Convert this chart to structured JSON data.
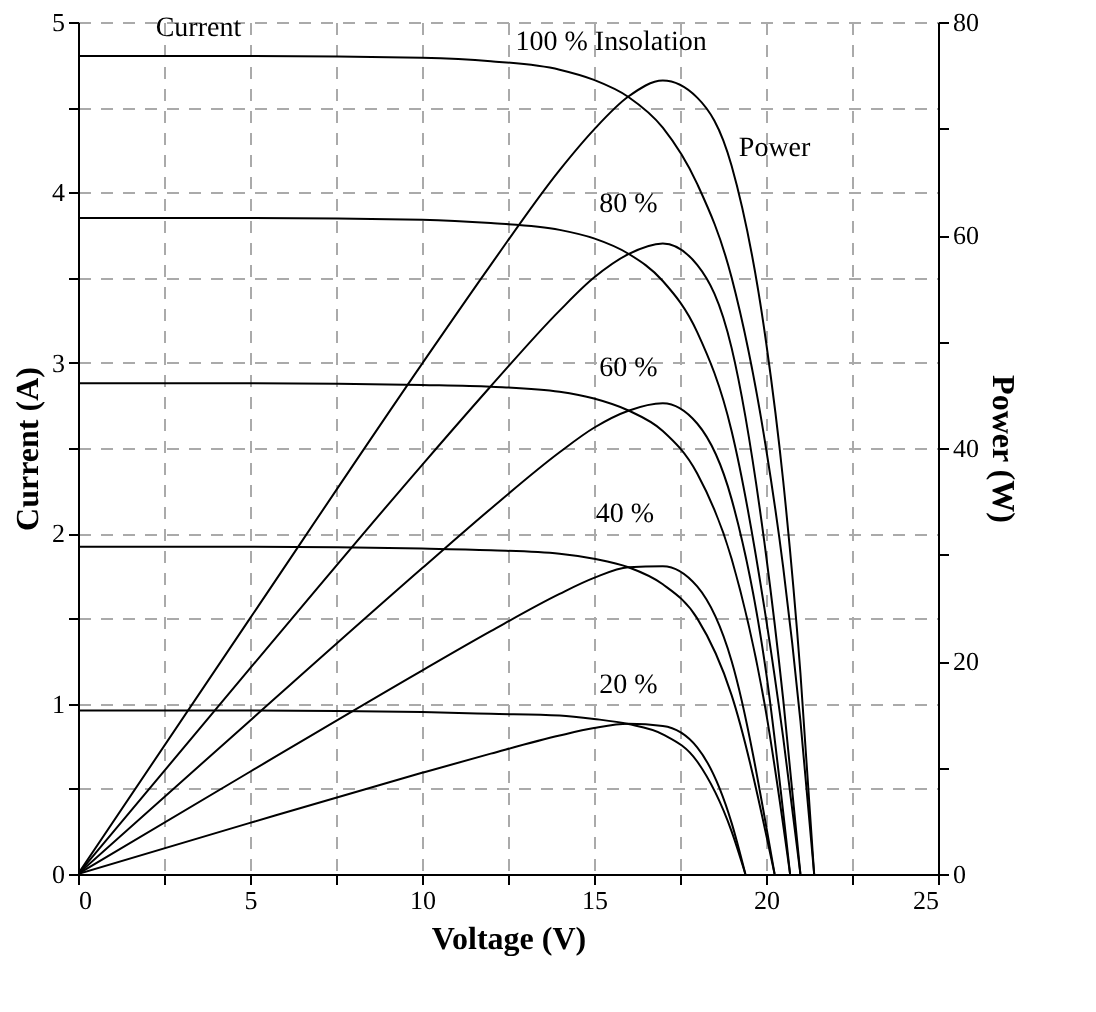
{
  "chart_data": {
    "type": "line",
    "xlabel": "Voltage (V)",
    "ylabel": "Current (A)",
    "y2label": "Power (W)",
    "xlim": [
      0,
      25
    ],
    "xticks": [
      0,
      {
        "value": 2.5,
        "label": null
      },
      5,
      {
        "value": 7.5,
        "label": null
      },
      10,
      {
        "value": 12.5,
        "label": null
      },
      15,
      {
        "value": 17.5,
        "label": null
      },
      20,
      {
        "value": 22.5,
        "label": null
      },
      25
    ],
    "ylim": [
      0,
      5
    ],
    "yticks": [
      0,
      {
        "value": 0.5,
        "label": null
      },
      1,
      {
        "value": 1.5,
        "label": null
      },
      2,
      {
        "value": 2.5,
        "label": null
      },
      3,
      {
        "value": 3.5,
        "label": null
      },
      4,
      {
        "value": 4.5,
        "label": null
      },
      5
    ],
    "y2lim": [
      0,
      80
    ],
    "y2ticks": [
      0,
      {
        "value": 10,
        "label": null
      },
      20,
      {
        "value": 30,
        "label": null
      },
      40,
      {
        "value": 50,
        "label": null
      },
      60,
      {
        "value": 70,
        "label": null
      },
      80
    ],
    "grid": true,
    "line_style": "solid",
    "series": [
      {
        "color": "#000000",
        "x": [
          0,
          5,
          10,
          12,
          14,
          15,
          16,
          17,
          18,
          19,
          20,
          20.5,
          21,
          21.4
        ],
        "values": [
          4.8,
          4.8,
          4.79,
          4.77,
          4.72,
          4.66,
          4.56,
          4.38,
          4.05,
          3.5,
          2.5,
          1.8,
          0.9,
          0
        ]
      },
      {
        "color": "#000000",
        "x": [
          0,
          5,
          10,
          12,
          14,
          15,
          16,
          17,
          18,
          19,
          20,
          20.5,
          21
        ],
        "values": [
          3.85,
          3.85,
          3.84,
          3.82,
          3.78,
          3.73,
          3.64,
          3.48,
          3.18,
          2.6,
          1.5,
          0.8,
          0
        ]
      },
      {
        "color": "#000000",
        "x": [
          0,
          5,
          10,
          12,
          14,
          15,
          16,
          17,
          18,
          19,
          20,
          20.7
        ],
        "values": [
          2.88,
          2.88,
          2.87,
          2.86,
          2.83,
          2.79,
          2.72,
          2.6,
          2.35,
          1.85,
          0.95,
          0
        ]
      },
      {
        "color": "#000000",
        "x": [
          0,
          5,
          10,
          12,
          14,
          15,
          16,
          17,
          18,
          19,
          20.25
        ],
        "values": [
          1.92,
          1.92,
          1.91,
          1.9,
          1.88,
          1.85,
          1.8,
          1.7,
          1.5,
          1.05,
          0
        ]
      },
      {
        "color": "#000000",
        "x": [
          0,
          5,
          10,
          12,
          14,
          15,
          16,
          17,
          18,
          19,
          19.4
        ],
        "values": [
          0.96,
          0.96,
          0.95,
          0.94,
          0.93,
          0.91,
          0.88,
          0.82,
          0.66,
          0.25,
          0
        ]
      },
      {
        "color": "#000000",
        "axis": "y2",
        "x": [
          0,
          5,
          10,
          12,
          14,
          15,
          16,
          17,
          18,
          19,
          20,
          20.5,
          21,
          21.4
        ],
        "values": [
          0,
          24,
          47.9,
          57.2,
          66.1,
          69.9,
          73,
          74.5,
          72.9,
          66.5,
          50,
          36.9,
          18.9,
          0
        ]
      },
      {
        "color": "#000000",
        "axis": "y2",
        "x": [
          0,
          5,
          10,
          12,
          14,
          15,
          16,
          17,
          18,
          19,
          20,
          20.5,
          21
        ],
        "values": [
          0,
          19.3,
          38.4,
          45.8,
          52.9,
          56,
          58.2,
          59.2,
          57.2,
          49.4,
          30,
          16.4,
          0
        ]
      },
      {
        "color": "#000000",
        "axis": "y2",
        "x": [
          0,
          5,
          10,
          12,
          14,
          15,
          16,
          17,
          18,
          19,
          20,
          20.7
        ],
        "values": [
          0,
          14.4,
          28.7,
          34.3,
          39.6,
          41.9,
          43.5,
          44.2,
          42.3,
          35.2,
          19,
          0
        ]
      },
      {
        "color": "#000000",
        "axis": "y2",
        "x": [
          0,
          5,
          10,
          12,
          14,
          15,
          16,
          17,
          18,
          19,
          20.25
        ],
        "values": [
          0,
          9.6,
          19.1,
          22.8,
          26.3,
          27.8,
          28.8,
          28.9,
          27,
          20,
          0
        ]
      },
      {
        "color": "#000000",
        "axis": "y2",
        "x": [
          0,
          5,
          10,
          12,
          14,
          15,
          16,
          17,
          18,
          19,
          19.4
        ],
        "values": [
          0,
          4.8,
          9.5,
          11.3,
          13,
          13.7,
          14.1,
          13.9,
          11.9,
          4.8,
          0
        ]
      }
    ],
    "annotations": [
      "Current",
      "100 % Insolation",
      "Power",
      "80 %",
      "60 %",
      "40 %",
      "20 %"
    ]
  }
}
